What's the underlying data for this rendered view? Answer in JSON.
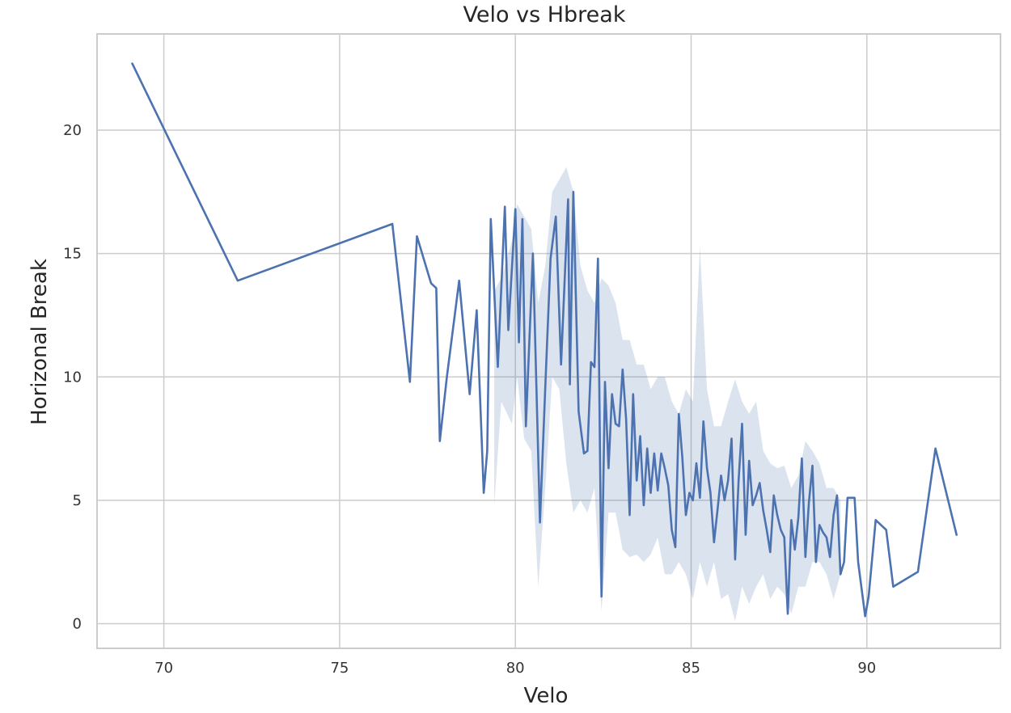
{
  "chart_data": {
    "type": "line",
    "title": "Velo vs Hbreak",
    "xlabel": "Velo",
    "ylabel": "Horizonal Break",
    "xlim": [
      68.1,
      93.8
    ],
    "ylim": [
      -1.0,
      23.9
    ],
    "xticks": [
      70,
      75,
      80,
      85,
      90
    ],
    "yticks": [
      0,
      5,
      10,
      15,
      20
    ],
    "grid": true,
    "line_color": "#4c72b0",
    "band_color": "#4c72b0",
    "series": [
      {
        "x": [
          69.1,
          72.1,
          76.5,
          77.0,
          77.2,
          77.6,
          77.75,
          77.85,
          78.05,
          78.4,
          78.7,
          78.9,
          79.1,
          79.2,
          79.3,
          79.5,
          79.7,
          79.8,
          80.0,
          80.1,
          80.2,
          80.3,
          80.5,
          80.7,
          80.85,
          81.0,
          81.15,
          81.3,
          81.5,
          81.55,
          81.65,
          81.8,
          81.95,
          82.05,
          82.15,
          82.25,
          82.35,
          82.45,
          82.55,
          82.65,
          82.75,
          82.85,
          82.95,
          83.05,
          83.15,
          83.25,
          83.35,
          83.45,
          83.55,
          83.65,
          83.75,
          83.85,
          83.95,
          84.05,
          84.15,
          84.25,
          84.35,
          84.45,
          84.55,
          84.65,
          84.75,
          84.85,
          84.95,
          85.05,
          85.15,
          85.25,
          85.35,
          85.45,
          85.55,
          85.65,
          85.75,
          85.85,
          85.95,
          86.05,
          86.15,
          86.25,
          86.35,
          86.45,
          86.55,
          86.65,
          86.75,
          86.85,
          86.95,
          87.05,
          87.15,
          87.25,
          87.35,
          87.45,
          87.55,
          87.65,
          87.75,
          87.85,
          87.95,
          88.05,
          88.15,
          88.25,
          88.35,
          88.45,
          88.55,
          88.65,
          88.75,
          88.85,
          88.95,
          89.05,
          89.15,
          89.25,
          89.35,
          89.45,
          89.55,
          89.65,
          89.75,
          89.95,
          90.05,
          90.25,
          90.55,
          90.75,
          91.45,
          91.95,
          92.55
        ],
        "y": [
          22.7,
          13.9,
          16.2,
          9.8,
          15.7,
          13.8,
          13.6,
          7.4,
          10.0,
          13.9,
          9.3,
          12.7,
          5.3,
          7.0,
          16.4,
          10.4,
          16.9,
          11.9,
          16.8,
          11.4,
          16.4,
          8.0,
          15.0,
          4.1,
          9.6,
          14.8,
          16.5,
          10.5,
          17.2,
          9.7,
          17.5,
          8.6,
          6.9,
          7.0,
          10.6,
          10.4,
          14.8,
          1.1,
          9.8,
          6.3,
          9.3,
          8.1,
          8.0,
          10.3,
          8.3,
          4.4,
          9.3,
          5.8,
          7.6,
          4.8,
          7.1,
          5.3,
          6.9,
          5.4,
          6.9,
          6.3,
          5.6,
          3.8,
          3.1,
          8.5,
          6.7,
          4.4,
          5.3,
          5.0,
          6.5,
          5.1,
          8.2,
          6.3,
          5.3,
          3.3,
          4.6,
          6.0,
          5.0,
          5.8,
          7.5,
          2.6,
          5.8,
          8.1,
          3.6,
          6.6,
          4.8,
          5.2,
          5.7,
          4.6,
          3.8,
          2.9,
          5.2,
          4.4,
          3.8,
          3.5,
          0.4,
          4.2,
          3.0,
          4.3,
          6.7,
          2.7,
          4.9,
          6.4,
          2.5,
          4.0,
          3.7,
          3.5,
          2.7,
          4.4,
          5.2,
          2.0,
          2.5,
          5.1,
          5.1,
          5.1,
          2.5,
          0.3,
          1.1,
          4.2,
          3.8,
          1.5,
          2.1,
          7.1,
          3.6
        ],
        "band_x": [
          79.4,
          79.6,
          79.9,
          80.05,
          80.25,
          80.45,
          80.65,
          80.85,
          81.05,
          81.25,
          81.45,
          81.65,
          81.85,
          82.05,
          82.25,
          82.45,
          82.65,
          82.85,
          83.05,
          83.25,
          83.45,
          83.65,
          83.85,
          84.05,
          84.25,
          84.45,
          84.65,
          84.85,
          85.05,
          85.25,
          85.45,
          85.65,
          85.85,
          86.05,
          86.25,
          86.45,
          86.65,
          86.85,
          87.05,
          87.25,
          87.45,
          87.65,
          87.85,
          88.05,
          88.25,
          88.45,
          88.65,
          88.85,
          89.05,
          89.25
        ],
        "band_low": [
          4.8,
          9.0,
          8.1,
          10.0,
          7.5,
          7.0,
          1.5,
          5.5,
          10.0,
          9.5,
          6.5,
          4.5,
          5.0,
          4.5,
          5.5,
          0.5,
          4.5,
          4.5,
          3.0,
          2.7,
          2.8,
          2.5,
          2.8,
          3.5,
          2.0,
          2.0,
          2.5,
          2.0,
          1.0,
          2.5,
          1.5,
          2.5,
          1.0,
          1.2,
          0.1,
          1.5,
          0.8,
          1.5,
          2.0,
          1.0,
          1.5,
          1.2,
          0.4,
          1.5,
          1.5,
          2.5,
          2.5,
          2.0,
          1.0,
          2.0
        ],
        "band_high": [
          13.5,
          14.0,
          15.5,
          17.0,
          16.5,
          16.0,
          13.0,
          14.5,
          17.5,
          18.0,
          18.5,
          17.5,
          14.5,
          13.5,
          13.0,
          14.0,
          13.7,
          13.0,
          11.5,
          11.5,
          10.5,
          10.5,
          9.5,
          10.0,
          10.0,
          9.0,
          8.5,
          9.5,
          9.0,
          15.3,
          9.5,
          8.0,
          8.0,
          9.0,
          9.9,
          9.0,
          8.5,
          9.0,
          7.0,
          6.5,
          6.3,
          6.4,
          5.5,
          6.0,
          7.4,
          7.0,
          6.5,
          5.5,
          5.5,
          5.0
        ]
      }
    ]
  }
}
